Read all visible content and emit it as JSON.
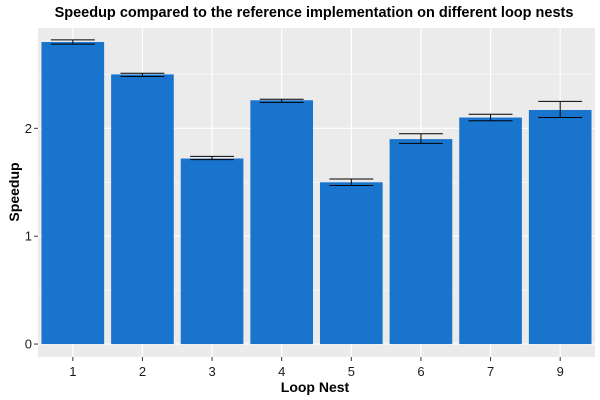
{
  "chart_data": {
    "type": "bar",
    "title": "Speedup compared to the reference implementation on different loop nests",
    "xlabel": "Loop Nest",
    "ylabel": "Speedup",
    "categories": [
      "1",
      "2",
      "3",
      "4",
      "5",
      "6",
      "7",
      "9"
    ],
    "values": [
      2.8,
      2.5,
      1.72,
      2.26,
      1.5,
      1.9,
      2.1,
      2.17
    ],
    "error_bars": [
      {
        "low": 2.78,
        "high": 2.82
      },
      {
        "low": 2.48,
        "high": 2.51
      },
      {
        "low": 1.71,
        "high": 1.74
      },
      {
        "low": 2.24,
        "high": 2.27
      },
      {
        "low": 1.47,
        "high": 1.53
      },
      {
        "low": 1.86,
        "high": 1.95
      },
      {
        "low": 2.07,
        "high": 2.13
      },
      {
        "low": 2.1,
        "high": 2.25
      }
    ],
    "y_ticks": [
      0,
      1,
      2
    ],
    "ylim": [
      -0.12,
      2.93
    ],
    "bar_color": "#1874cd",
    "panel_background": "#ebebeb",
    "grid": true
  }
}
